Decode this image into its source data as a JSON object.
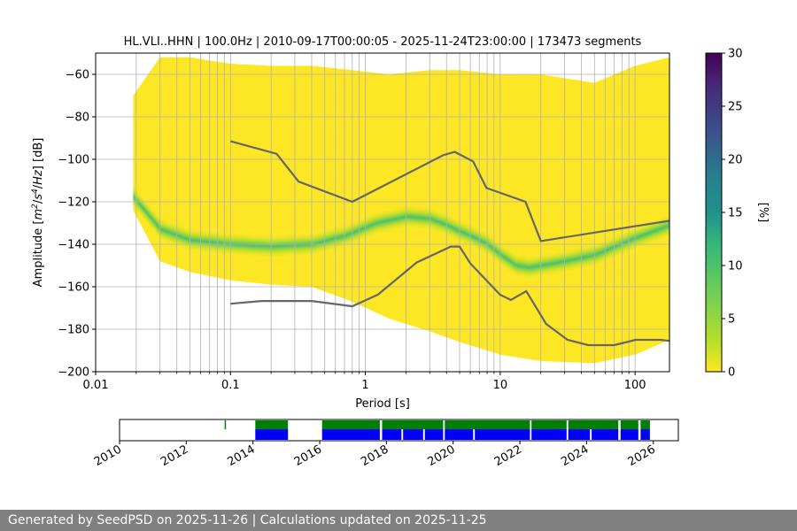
{
  "chart_data": [
    {
      "type": "heatmap",
      "title": "HL.VLI..HHN | 100.0Hz | 2010-09-17T00:00:05 - 2025-11-24T23:00:00 | 173473 segments",
      "xlabel": "Period [s]",
      "ylabel_parts": [
        "Amplitude [",
        "m",
        "2",
        "/",
        "s",
        "4",
        "/",
        "Hz",
        "] [dB]"
      ],
      "x_scale": "log",
      "xlim": [
        0.01,
        180
      ],
      "ylim": [
        -200,
        -50
      ],
      "grid": true,
      "x_ticks": [
        {
          "value": 0.01,
          "label": "0.01"
        },
        {
          "value": 0.1,
          "label": "0.1"
        },
        {
          "value": 1,
          "label": "1"
        },
        {
          "value": 10,
          "label": "10"
        },
        {
          "value": 100,
          "label": "100"
        }
      ],
      "y_ticks": [
        {
          "value": -60,
          "label": "−60"
        },
        {
          "value": -80,
          "label": "−80"
        },
        {
          "value": -100,
          "label": "−100"
        },
        {
          "value": -120,
          "label": "−120"
        },
        {
          "value": -140,
          "label": "−140"
        },
        {
          "value": -160,
          "label": "−160"
        },
        {
          "value": -180,
          "label": "−180"
        },
        {
          "value": -200,
          "label": "−200"
        }
      ],
      "colorbar": {
        "label": "[%]",
        "range": [
          0,
          30
        ],
        "ticks": [
          {
            "value": 0,
            "label": "0"
          },
          {
            "value": 5,
            "label": "5"
          },
          {
            "value": 10,
            "label": "10"
          },
          {
            "value": 15,
            "label": "15"
          },
          {
            "value": 20,
            "label": "20"
          },
          {
            "value": 25,
            "label": "25"
          },
          {
            "value": 30,
            "label": "30"
          }
        ],
        "colormap": "viridis_r"
      },
      "period_min": 0.019,
      "envelope": {
        "periods": [
          0.019,
          0.03,
          0.05,
          0.1,
          0.2,
          0.4,
          0.8,
          1.5,
          3,
          5,
          10,
          20,
          50,
          100,
          180
        ],
        "upper": [
          -70,
          -52,
          -52,
          -55,
          -56,
          -56,
          -58,
          -60,
          -58,
          -58,
          -60,
          -60,
          -64,
          -56,
          -52
        ],
        "lower": [
          -124,
          -148,
          -153,
          -157,
          -159,
          -160,
          -167,
          -175,
          -181,
          -186,
          -192,
          -195,
          -196,
          -192,
          -185
        ]
      },
      "mode_curve": {
        "periods": [
          0.019,
          0.03,
          0.05,
          0.1,
          0.2,
          0.4,
          0.7,
          1.2,
          2,
          3,
          4,
          5,
          6,
          8,
          10,
          13,
          16,
          20,
          30,
          50,
          100,
          180
        ],
        "values": [
          -118,
          -133,
          -138,
          -140,
          -141,
          -140,
          -136,
          -130,
          -127,
          -128,
          -131,
          -134,
          -136,
          -140,
          -145,
          -150,
          -151,
          -150,
          -148,
          -145,
          -137,
          -131
        ]
      },
      "noise_models": {
        "high": {
          "periods": [
            0.1,
            0.22,
            0.32,
            0.8,
            3.8,
            4.6,
            6.3,
            7.9,
            15.4,
            20,
            354.8
          ],
          "values": [
            -91.5,
            -97.4,
            -110.5,
            -120,
            -98,
            -96.5,
            -101,
            -113.5,
            -120,
            -138.5,
            -126
          ]
        },
        "low": {
          "periods": [
            0.1,
            0.17,
            0.4,
            0.8,
            1.24,
            2.4,
            4.3,
            5,
            6,
            10,
            12,
            15.6,
            21.9,
            31.6,
            45,
            70,
            101,
            154,
            180
          ],
          "values": [
            -168,
            -166.7,
            -166.7,
            -169.2,
            -163.7,
            -148.6,
            -141.1,
            -141.1,
            -149,
            -163.8,
            -166.2,
            -162.1,
            -177.5,
            -185,
            -187.5,
            -187.5,
            -185,
            -185,
            -185.5
          ]
        }
      }
    },
    {
      "type": "timeline",
      "x_ticks": [
        "2010",
        "2012",
        "2014",
        "2016",
        "2018",
        "2020",
        "2022",
        "2024",
        "2026"
      ],
      "xlim": [
        2010.0,
        2026.75
      ],
      "colors": {
        "green": "#008000",
        "blue": "#0000ff"
      },
      "green_segments": [
        [
          2013.15,
          2013.19
        ],
        [
          2014.07,
          2015.05
        ],
        [
          2016.07,
          2017.8
        ],
        [
          2017.87,
          2019.7
        ],
        [
          2019.75,
          2022.3
        ],
        [
          2022.35,
          2023.4
        ],
        [
          2023.45,
          2024.95
        ],
        [
          2025.02,
          2025.55
        ],
        [
          2025.62,
          2025.9
        ]
      ],
      "blue_segments": [
        [
          2014.07,
          2015.05
        ],
        [
          2016.07,
          2017.8
        ],
        [
          2017.87,
          2018.45
        ],
        [
          2018.5,
          2019.1
        ],
        [
          2019.15,
          2019.7
        ],
        [
          2019.75,
          2020.6
        ],
        [
          2020.65,
          2022.3
        ],
        [
          2022.35,
          2023.4
        ],
        [
          2023.45,
          2024.1
        ],
        [
          2024.15,
          2024.95
        ],
        [
          2025.02,
          2025.55
        ],
        [
          2025.62,
          2025.9
        ]
      ]
    }
  ],
  "footer": {
    "text": "Generated by SeedPSD on 2025-11-26 | Calculations updated on 2025-11-25"
  }
}
